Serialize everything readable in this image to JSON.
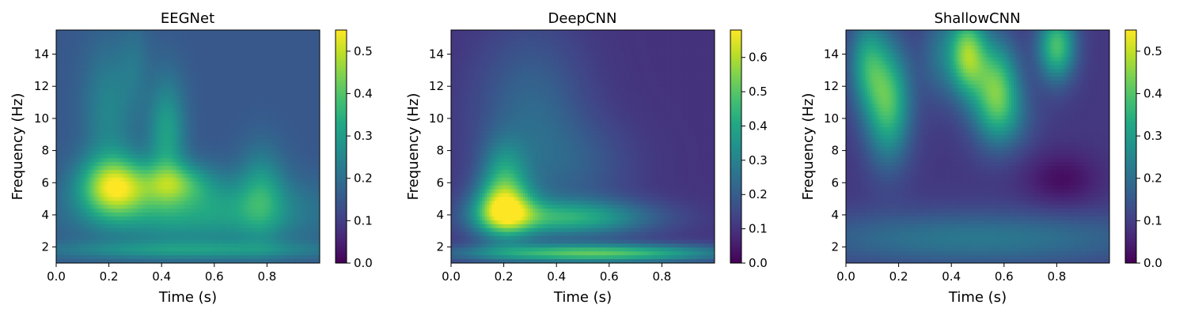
{
  "chart_data": [
    {
      "type": "heatmap",
      "title": "EEGNet",
      "xlabel": "Time (s)",
      "ylabel": "Frequency (Hz)",
      "xlim": [
        0.0,
        1.0
      ],
      "ylim": [
        1,
        15.5
      ],
      "xticks": [
        0.0,
        0.2,
        0.4,
        0.6,
        0.8
      ],
      "yticks": [
        2,
        4,
        6,
        8,
        10,
        12,
        14
      ],
      "colorbar": {
        "min": 0.0,
        "max": 0.55,
        "ticks": [
          0.0,
          0.1,
          0.2,
          0.3,
          0.4,
          0.5
        ]
      },
      "colormap": "viridis",
      "base": 0.15,
      "blobs": [
        {
          "t": 0.22,
          "f": 5.8,
          "st": 0.09,
          "sf": 1.3,
          "a": 0.33
        },
        {
          "t": 0.45,
          "f": 6.0,
          "st": 0.09,
          "sf": 0.9,
          "a": 0.18
        },
        {
          "t": 0.55,
          "f": 4.2,
          "st": 0.3,
          "sf": 1.5,
          "a": 0.17
        },
        {
          "t": 0.42,
          "f": 9.0,
          "st": 0.05,
          "sf": 2.5,
          "a": 0.16
        },
        {
          "t": 0.2,
          "f": 10.5,
          "st": 0.07,
          "sf": 3.0,
          "a": 0.1
        },
        {
          "t": 0.78,
          "f": 5.5,
          "st": 0.06,
          "sf": 2.0,
          "a": 0.12
        },
        {
          "t": 0.5,
          "f": 1.8,
          "st": 0.4,
          "sf": 0.4,
          "a": 0.12
        },
        {
          "t": 0.3,
          "f": 13.5,
          "st": 0.04,
          "sf": 2.0,
          "a": 0.05
        }
      ]
    },
    {
      "type": "heatmap",
      "title": "DeepCNN",
      "xlabel": "Time (s)",
      "ylabel": "Frequency (Hz)",
      "xlim": [
        0.0,
        1.0
      ],
      "ylim": [
        1,
        15.5
      ],
      "xticks": [
        0.0,
        0.2,
        0.4,
        0.6,
        0.8
      ],
      "yticks": [
        2,
        4,
        6,
        8,
        10,
        12,
        14
      ],
      "colorbar": {
        "min": 0.0,
        "max": 0.68,
        "ticks": [
          0.0,
          0.1,
          0.2,
          0.3,
          0.4,
          0.5,
          0.6
        ]
      },
      "colormap": "viridis",
      "base": 0.1,
      "blobs": [
        {
          "t": 0.2,
          "f": 4.3,
          "st": 0.08,
          "sf": 1.2,
          "a": 0.45
        },
        {
          "t": 0.45,
          "f": 3.8,
          "st": 0.22,
          "sf": 0.8,
          "a": 0.3
        },
        {
          "t": 0.55,
          "f": 1.6,
          "st": 0.35,
          "sf": 0.4,
          "a": 0.4
        },
        {
          "t": 0.2,
          "f": 6.5,
          "st": 0.06,
          "sf": 1.5,
          "a": 0.2
        },
        {
          "t": 0.3,
          "f": 10.0,
          "st": 0.15,
          "sf": 4.0,
          "a": 0.13
        },
        {
          "t": 0.5,
          "f": 7.0,
          "st": 0.15,
          "sf": 2.0,
          "a": 0.07
        }
      ]
    },
    {
      "type": "heatmap",
      "title": "ShallowCNN",
      "xlabel": "Time (s)",
      "ylabel": "Frequency (Hz)",
      "xlim": [
        0.0,
        1.0
      ],
      "ylim": [
        1,
        15.5
      ],
      "xticks": [
        0.0,
        0.2,
        0.4,
        0.6,
        0.8
      ],
      "yticks": [
        2,
        4,
        6,
        8,
        10,
        12,
        14
      ],
      "colorbar": {
        "min": 0.0,
        "max": 0.55,
        "ticks": [
          0.0,
          0.1,
          0.2,
          0.3,
          0.4,
          0.5
        ]
      },
      "colormap": "viridis",
      "base": 0.09,
      "blobs": [
        {
          "t": 0.46,
          "f": 14.0,
          "st": 0.05,
          "sf": 1.8,
          "a": 0.35
        },
        {
          "t": 0.57,
          "f": 12.0,
          "st": 0.06,
          "sf": 2.0,
          "a": 0.3
        },
        {
          "t": 0.8,
          "f": 14.5,
          "st": 0.05,
          "sf": 1.5,
          "a": 0.3
        },
        {
          "t": 0.16,
          "f": 11.0,
          "st": 0.06,
          "sf": 2.5,
          "a": 0.3
        },
        {
          "t": 0.08,
          "f": 13.5,
          "st": 0.05,
          "sf": 2.0,
          "a": 0.2
        },
        {
          "t": 0.35,
          "f": 14.0,
          "st": 0.05,
          "sf": 2.0,
          "a": 0.1
        },
        {
          "t": 0.5,
          "f": 2.5,
          "st": 0.5,
          "sf": 1.2,
          "a": 0.13
        },
        {
          "t": 0.6,
          "f": 10.0,
          "st": 0.08,
          "sf": 1.5,
          "a": 0.1
        }
      ],
      "dips": [
        {
          "t": 0.82,
          "f": 6.2,
          "st": 0.1,
          "sf": 1.2,
          "a": 0.07
        }
      ]
    }
  ]
}
